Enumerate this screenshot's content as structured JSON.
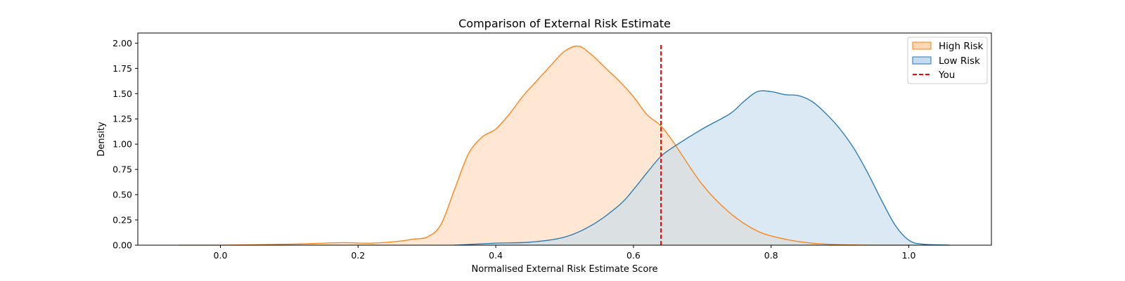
{
  "chart_data": {
    "type": "area",
    "title": "Comparison of External Risk Estimate",
    "xlabel": "Normalised External Risk Estimate Score",
    "ylabel": "Density",
    "xlim": [
      -0.12,
      1.12
    ],
    "ylim": [
      0,
      2.1
    ],
    "xticks": [
      0.0,
      0.2,
      0.4,
      0.6,
      0.8,
      1.0
    ],
    "xtick_labels": [
      "0.0",
      "0.2",
      "0.4",
      "0.6",
      "0.8",
      "1.0"
    ],
    "yticks": [
      0,
      0.25,
      0.5,
      0.75,
      1.0,
      1.25,
      1.5,
      1.75,
      2.0
    ],
    "ytick_labels": [
      "0.00",
      "0.25",
      "0.50",
      "0.75",
      "1.00",
      "1.25",
      "1.50",
      "1.75",
      "2.00"
    ],
    "grid": false,
    "legend_position": "top-right",
    "series": [
      {
        "name": "High Risk",
        "line_color": "#ff7f0e",
        "fill_color": "#ffd8b8",
        "x": [
          -0.06,
          0.0,
          0.1,
          0.15,
          0.18,
          0.22,
          0.26,
          0.28,
          0.3,
          0.32,
          0.34,
          0.36,
          0.38,
          0.4,
          0.42,
          0.44,
          0.46,
          0.48,
          0.5,
          0.52,
          0.54,
          0.56,
          0.58,
          0.6,
          0.62,
          0.64,
          0.66,
          0.7,
          0.74,
          0.78,
          0.82,
          0.86,
          0.9,
          0.95,
          1.0
        ],
        "y": [
          0.0,
          0.0,
          0.01,
          0.02,
          0.025,
          0.02,
          0.04,
          0.06,
          0.08,
          0.2,
          0.55,
          0.9,
          1.07,
          1.15,
          1.3,
          1.48,
          1.63,
          1.78,
          1.92,
          1.97,
          1.88,
          1.75,
          1.62,
          1.47,
          1.29,
          1.18,
          1.0,
          0.6,
          0.32,
          0.14,
          0.06,
          0.02,
          0.005,
          0.0,
          0.0
        ]
      },
      {
        "name": "Low Risk",
        "line_color": "#1f77b4",
        "fill_color": "#c5dcee",
        "x": [
          0.34,
          0.4,
          0.45,
          0.5,
          0.54,
          0.58,
          0.6,
          0.62,
          0.64,
          0.66,
          0.7,
          0.74,
          0.76,
          0.78,
          0.8,
          0.82,
          0.84,
          0.86,
          0.88,
          0.9,
          0.92,
          0.94,
          0.96,
          0.98,
          1.0,
          1.02,
          1.06
        ],
        "y": [
          0.0,
          0.02,
          0.03,
          0.08,
          0.2,
          0.4,
          0.55,
          0.72,
          0.88,
          0.98,
          1.15,
          1.3,
          1.42,
          1.52,
          1.52,
          1.49,
          1.48,
          1.42,
          1.3,
          1.15,
          0.96,
          0.72,
          0.45,
          0.2,
          0.05,
          0.01,
          0.0
        ]
      }
    ],
    "reference_line": {
      "name": "You",
      "x": 0.64,
      "y_range": [
        0,
        2.0
      ],
      "color": "#ff0000",
      "style": "dashed"
    }
  }
}
